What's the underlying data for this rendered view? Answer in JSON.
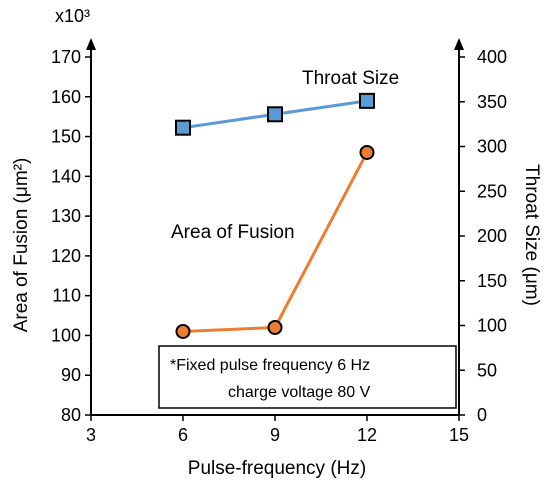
{
  "chart_data": {
    "type": "line",
    "x": [
      6,
      9,
      12
    ],
    "xlabel": "Pulse-frequency (Hz)",
    "xlim": [
      3,
      15
    ],
    "xticks": [
      3,
      6,
      9,
      12,
      15
    ],
    "ylabel_left": "Area of Fusion (μm²)",
    "ylim_left": [
      80,
      170
    ],
    "yticks_left": [
      80,
      90,
      100,
      110,
      120,
      130,
      140,
      150,
      160,
      170
    ],
    "y_multiplier_label": "x10³",
    "ylabel_right": "Throat Size (μm)",
    "ylim_right": [
      0,
      400
    ],
    "yticks_right": [
      0,
      50,
      100,
      150,
      200,
      250,
      300,
      350,
      400
    ],
    "grid": false,
    "series": [
      {
        "name": "Throat Size",
        "axis": "right",
        "values": [
          321,
          336,
          351
        ],
        "line_color": "#5b9bd5",
        "marker": "square",
        "marker_color": "#5b9bd5"
      },
      {
        "name": "Area of Fusion",
        "axis": "left",
        "values": [
          101,
          102,
          146
        ],
        "line_color": "#ed7d31",
        "marker": "circle",
        "marker_color": "#ed7d31"
      }
    ],
    "note_lines": [
      "*Fixed pulse frequency 6 Hz",
      "charge voltage 80 V"
    ]
  }
}
